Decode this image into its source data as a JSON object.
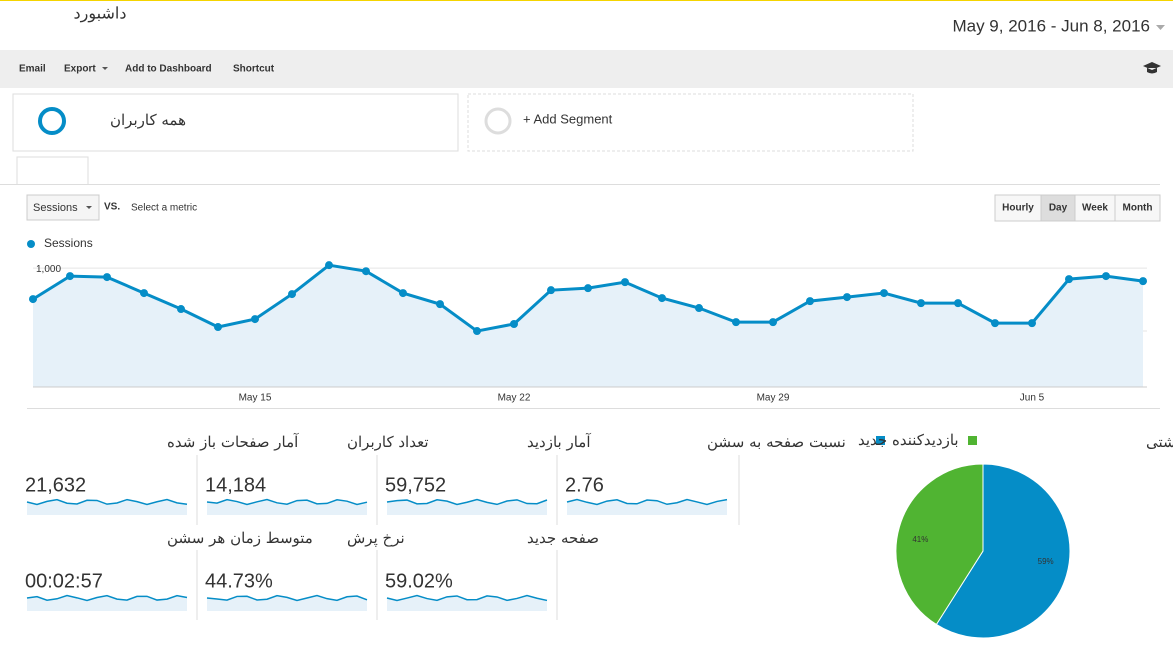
{
  "header": {
    "title": "داشبورد",
    "date_range": "May 9, 2016 - Jun 8, 2016"
  },
  "toolbar": [
    "Email",
    "Export",
    "Add to Dashboard",
    "Shortcut"
  ],
  "segments": [
    "همه کاربران",
    "+ Add Segment"
  ],
  "controls": {
    "metric": "Sessions",
    "vs": "VS.",
    "select": "Select a metric",
    "intervals": [
      "Hourly",
      "Day",
      "Week",
      "Month"
    ],
    "selected_interval": 1
  },
  "chart_data": [
    {
      "type": "line",
      "categories": [
        null,
        null,
        null,
        null,
        null,
        null,
        "May 15",
        null,
        null,
        null,
        null,
        null,
        null,
        "May 22",
        null,
        null,
        null,
        null,
        null,
        null,
        "May 29",
        null,
        null,
        null,
        null,
        null,
        null,
        "Jun 5",
        null,
        null,
        null
      ],
      "series": [
        {
          "name": "Sessions",
          "color": "#058dc7",
          "values": [
            754,
            937,
            929,
            802,
            675,
            532,
            595,
            794,
            1024,
            976,
            802,
            714,
            500,
            556,
            825,
            841,
            889,
            762,
            683,
            571,
            571,
            738,
            770,
            802,
            722,
            722,
            563,
            563,
            913,
            937,
            897
          ]
        }
      ],
      "ylim": [
        55,
        1065
      ],
      "yticks": [
        500,
        {
          "value": 1000,
          "label": "1,000"
        }
      ],
      "grid": true
    },
    {
      "type": "pie",
      "categories": [
        "بازدیدکننده جدید",
        "بازدیدکننده برگشتی"
      ],
      "values": [
        59,
        41
      ],
      "value_labels": [
        "59%",
        "41%"
      ],
      "colors": [
        "#058dc7",
        "#50b432"
      ]
    }
  ],
  "metrics": [
    {
      "label": "آمار صفحات باز شده",
      "value": "21,632"
    },
    {
      "label": "تعداد کاربران",
      "value": "14,184"
    },
    {
      "label": "آمار بازدید",
      "value": "59,752"
    },
    {
      "label": "نسبت صفحه به سشن",
      "value": "2.76"
    },
    {
      "label": "متوسط زمان هر سشن",
      "value": "00:02:57"
    },
    {
      "label": "نرخ پرش",
      "value": "44.73%"
    },
    {
      "label": "صفحه جدید",
      "value": "59.02%"
    }
  ]
}
